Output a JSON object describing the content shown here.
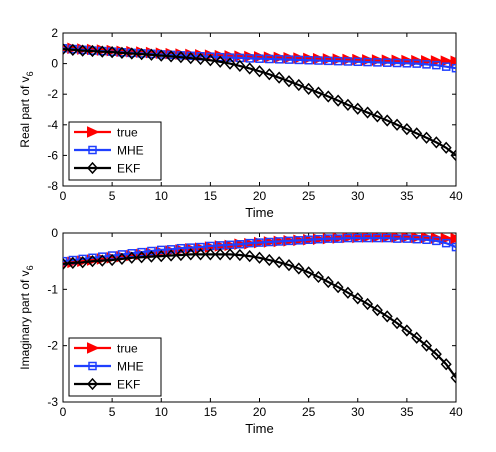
{
  "chart_data": [
    {
      "type": "line",
      "xlabel": "Time",
      "ylabel_main": "Real part of v",
      "ylabel_sub": "6",
      "xlim": [
        0,
        40
      ],
      "ylim": [
        -8,
        2
      ],
      "xticks": [
        0,
        5,
        10,
        15,
        20,
        25,
        30,
        35,
        40
      ],
      "yticks": [
        -8,
        -6,
        -4,
        -2,
        0,
        2
      ],
      "legend_position": "bottom-left",
      "series": [
        {
          "name": "true",
          "color": "#ff0000",
          "marker": "triangle-right",
          "x": [
            0,
            1,
            2,
            3,
            4,
            5,
            6,
            7,
            8,
            9,
            10,
            11,
            12,
            13,
            14,
            15,
            16,
            17,
            18,
            19,
            20,
            21,
            22,
            23,
            24,
            25,
            26,
            27,
            28,
            29,
            30,
            31,
            32,
            33,
            34,
            35,
            36,
            37,
            38,
            39,
            40
          ],
          "y": [
            1.0,
            1.0,
            0.95,
            0.92,
            0.88,
            0.85,
            0.8,
            0.78,
            0.75,
            0.72,
            0.68,
            0.65,
            0.62,
            0.6,
            0.57,
            0.55,
            0.52,
            0.5,
            0.48,
            0.46,
            0.44,
            0.42,
            0.4,
            0.38,
            0.36,
            0.34,
            0.32,
            0.3,
            0.29,
            0.27,
            0.26,
            0.24,
            0.23,
            0.22,
            0.21,
            0.2,
            0.19,
            0.18,
            0.17,
            0.16,
            0.15
          ]
        },
        {
          "name": "MHE",
          "color": "#1f3fff",
          "marker": "square",
          "x": [
            0,
            1,
            2,
            3,
            4,
            5,
            6,
            7,
            8,
            9,
            10,
            11,
            12,
            13,
            14,
            15,
            16,
            17,
            18,
            19,
            20,
            21,
            22,
            23,
            24,
            25,
            26,
            27,
            28,
            29,
            30,
            31,
            32,
            33,
            34,
            35,
            36,
            37,
            38,
            39,
            40
          ],
          "y": [
            1.0,
            0.95,
            0.9,
            0.85,
            0.82,
            0.78,
            0.74,
            0.7,
            0.67,
            0.64,
            0.6,
            0.57,
            0.54,
            0.51,
            0.48,
            0.45,
            0.42,
            0.39,
            0.37,
            0.34,
            0.32,
            0.3,
            0.28,
            0.26,
            0.24,
            0.22,
            0.2,
            0.18,
            0.16,
            0.14,
            0.12,
            0.1,
            0.08,
            0.06,
            0.04,
            0.02,
            0.0,
            -0.05,
            -0.1,
            -0.2,
            -0.3
          ]
        },
        {
          "name": "EKF",
          "color": "#000000",
          "marker": "diamond",
          "x": [
            0,
            1,
            2,
            3,
            4,
            5,
            6,
            7,
            8,
            9,
            10,
            11,
            12,
            13,
            14,
            15,
            16,
            17,
            18,
            19,
            20,
            21,
            22,
            23,
            24,
            25,
            26,
            27,
            28,
            29,
            30,
            31,
            32,
            33,
            34,
            35,
            36,
            37,
            38,
            39,
            40
          ],
          "y": [
            0.95,
            0.9,
            0.85,
            0.82,
            0.78,
            0.75,
            0.7,
            0.66,
            0.62,
            0.58,
            0.52,
            0.47,
            0.42,
            0.36,
            0.3,
            0.22,
            0.12,
            0.0,
            -0.15,
            -0.32,
            -0.5,
            -0.7,
            -0.92,
            -1.15,
            -1.4,
            -1.65,
            -1.9,
            -2.15,
            -2.42,
            -2.7,
            -2.95,
            -3.2,
            -3.45,
            -3.72,
            -4.0,
            -4.28,
            -4.56,
            -4.85,
            -5.15,
            -5.5,
            -6.0
          ]
        }
      ]
    },
    {
      "type": "line",
      "xlabel": "Time",
      "ylabel_main": "Imaginary part of v",
      "ylabel_sub": "6",
      "xlim": [
        0,
        40
      ],
      "ylim": [
        -3,
        0
      ],
      "xticks": [
        0,
        5,
        10,
        15,
        20,
        25,
        30,
        35,
        40
      ],
      "yticks": [
        -3,
        -2,
        -1,
        0
      ],
      "legend_position": "bottom-left",
      "series": [
        {
          "name": "true",
          "color": "#ff0000",
          "marker": "triangle-right",
          "x": [
            0,
            1,
            2,
            3,
            4,
            5,
            6,
            7,
            8,
            9,
            10,
            11,
            12,
            13,
            14,
            15,
            16,
            17,
            18,
            19,
            20,
            21,
            22,
            23,
            24,
            25,
            26,
            27,
            28,
            29,
            30,
            31,
            32,
            33,
            34,
            35,
            36,
            37,
            38,
            39,
            40
          ],
          "y": [
            -0.55,
            -0.52,
            -0.5,
            -0.48,
            -0.46,
            -0.44,
            -0.42,
            -0.4,
            -0.38,
            -0.36,
            -0.34,
            -0.32,
            -0.3,
            -0.28,
            -0.27,
            -0.25,
            -0.23,
            -0.22,
            -0.2,
            -0.19,
            -0.17,
            -0.16,
            -0.15,
            -0.14,
            -0.13,
            -0.12,
            -0.11,
            -0.1,
            -0.09,
            -0.08,
            -0.08,
            -0.07,
            -0.07,
            -0.07,
            -0.07,
            -0.07,
            -0.08,
            -0.08,
            -0.09,
            -0.1,
            -0.1
          ]
        },
        {
          "name": "MHE",
          "color": "#1f3fff",
          "marker": "square",
          "x": [
            0,
            1,
            2,
            3,
            4,
            5,
            6,
            7,
            8,
            9,
            10,
            11,
            12,
            13,
            14,
            15,
            16,
            17,
            18,
            19,
            20,
            21,
            22,
            23,
            24,
            25,
            26,
            27,
            28,
            29,
            30,
            31,
            32,
            33,
            34,
            35,
            36,
            37,
            38,
            39,
            40
          ],
          "y": [
            -0.5,
            -0.48,
            -0.46,
            -0.44,
            -0.42,
            -0.4,
            -0.38,
            -0.36,
            -0.34,
            -0.32,
            -0.3,
            -0.29,
            -0.27,
            -0.26,
            -0.25,
            -0.23,
            -0.22,
            -0.21,
            -0.2,
            -0.18,
            -0.17,
            -0.16,
            -0.15,
            -0.14,
            -0.13,
            -0.12,
            -0.11,
            -0.1,
            -0.1,
            -0.09,
            -0.09,
            -0.09,
            -0.09,
            -0.09,
            -0.1,
            -0.1,
            -0.11,
            -0.12,
            -0.14,
            -0.18,
            -0.25
          ]
        },
        {
          "name": "EKF",
          "color": "#000000",
          "marker": "diamond",
          "x": [
            0,
            1,
            2,
            3,
            4,
            5,
            6,
            7,
            8,
            9,
            10,
            11,
            12,
            13,
            14,
            15,
            16,
            17,
            18,
            19,
            20,
            21,
            22,
            23,
            24,
            25,
            26,
            27,
            28,
            29,
            30,
            31,
            32,
            33,
            34,
            35,
            36,
            37,
            38,
            39,
            40
          ],
          "y": [
            -0.55,
            -0.53,
            -0.52,
            -0.5,
            -0.49,
            -0.48,
            -0.46,
            -0.44,
            -0.43,
            -0.42,
            -0.41,
            -0.4,
            -0.39,
            -0.38,
            -0.38,
            -0.38,
            -0.38,
            -0.38,
            -0.39,
            -0.41,
            -0.44,
            -0.48,
            -0.52,
            -0.57,
            -0.63,
            -0.7,
            -0.78,
            -0.87,
            -0.96,
            -1.06,
            -1.16,
            -1.26,
            -1.37,
            -1.48,
            -1.6,
            -1.73,
            -1.86,
            -2.0,
            -2.15,
            -2.33,
            -2.57
          ]
        }
      ]
    }
  ]
}
